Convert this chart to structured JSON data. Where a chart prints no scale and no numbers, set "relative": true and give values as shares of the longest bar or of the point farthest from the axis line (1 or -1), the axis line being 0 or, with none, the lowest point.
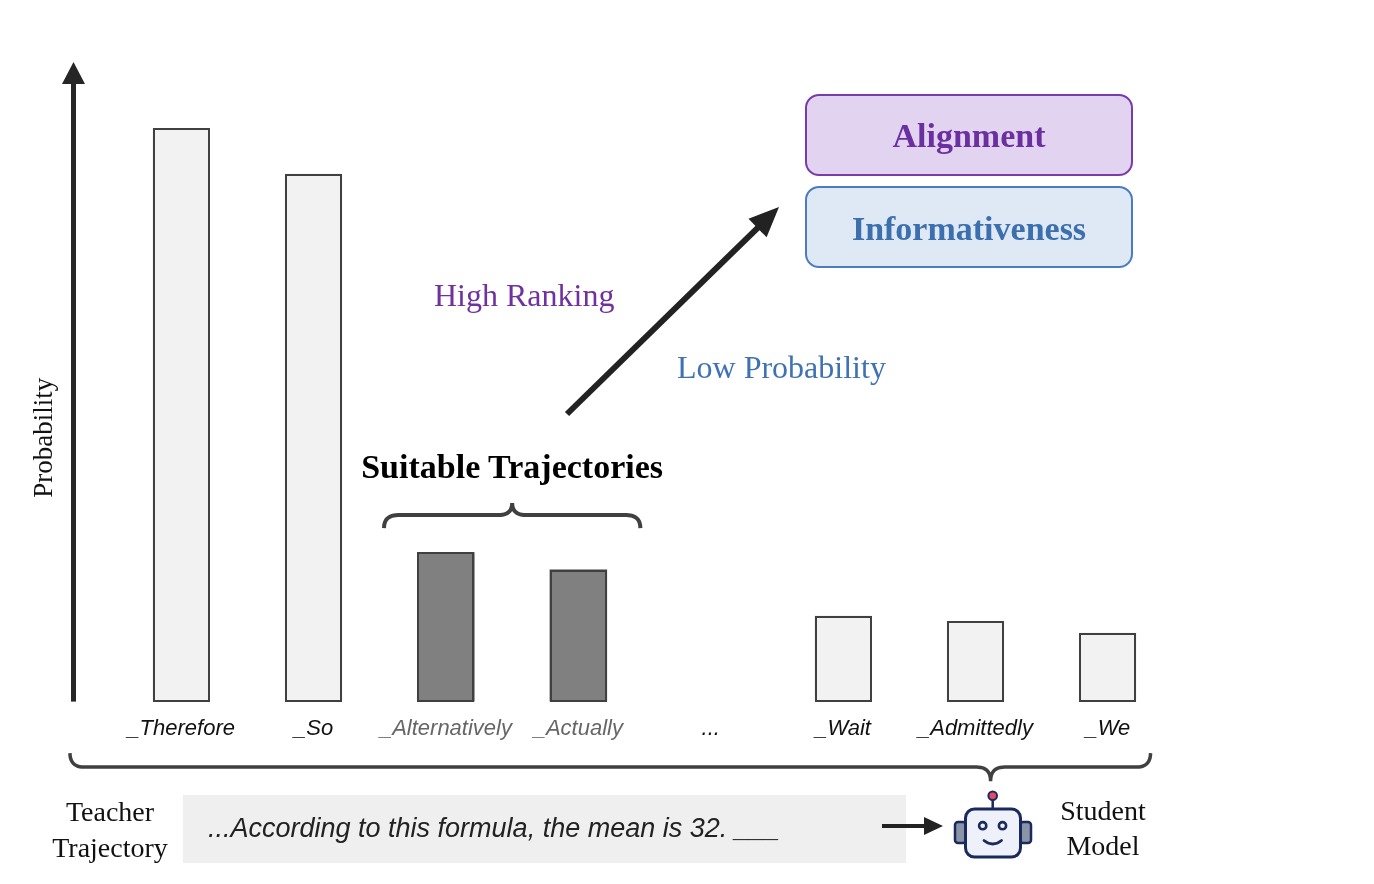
{
  "chart_data": {
    "type": "bar",
    "categories": [
      "_Therefore",
      "_So",
      "_Alternatively",
      "_Actually",
      "...",
      "_Wait",
      "_Admittedly",
      "_We"
    ],
    "values": [
      1,
      0.92,
      0.26,
      0.23,
      null,
      0.15,
      0.14,
      0.12
    ],
    "colors": [
      "#f2f2f2",
      "#f2f2f2",
      "#808080",
      "#808080",
      null,
      "#f2f2f2",
      "#f2f2f2",
      "#f2f2f2"
    ],
    "relative": true,
    "ylabel": "Probability",
    "annotations": [
      "Suitable Trajectories",
      "High Ranking",
      "Low Probability",
      "Alignment",
      "Informativeness",
      "Teacher Trajectory",
      "...According to this formula, the mean is 32. ___",
      "Student Model"
    ]
  }
}
